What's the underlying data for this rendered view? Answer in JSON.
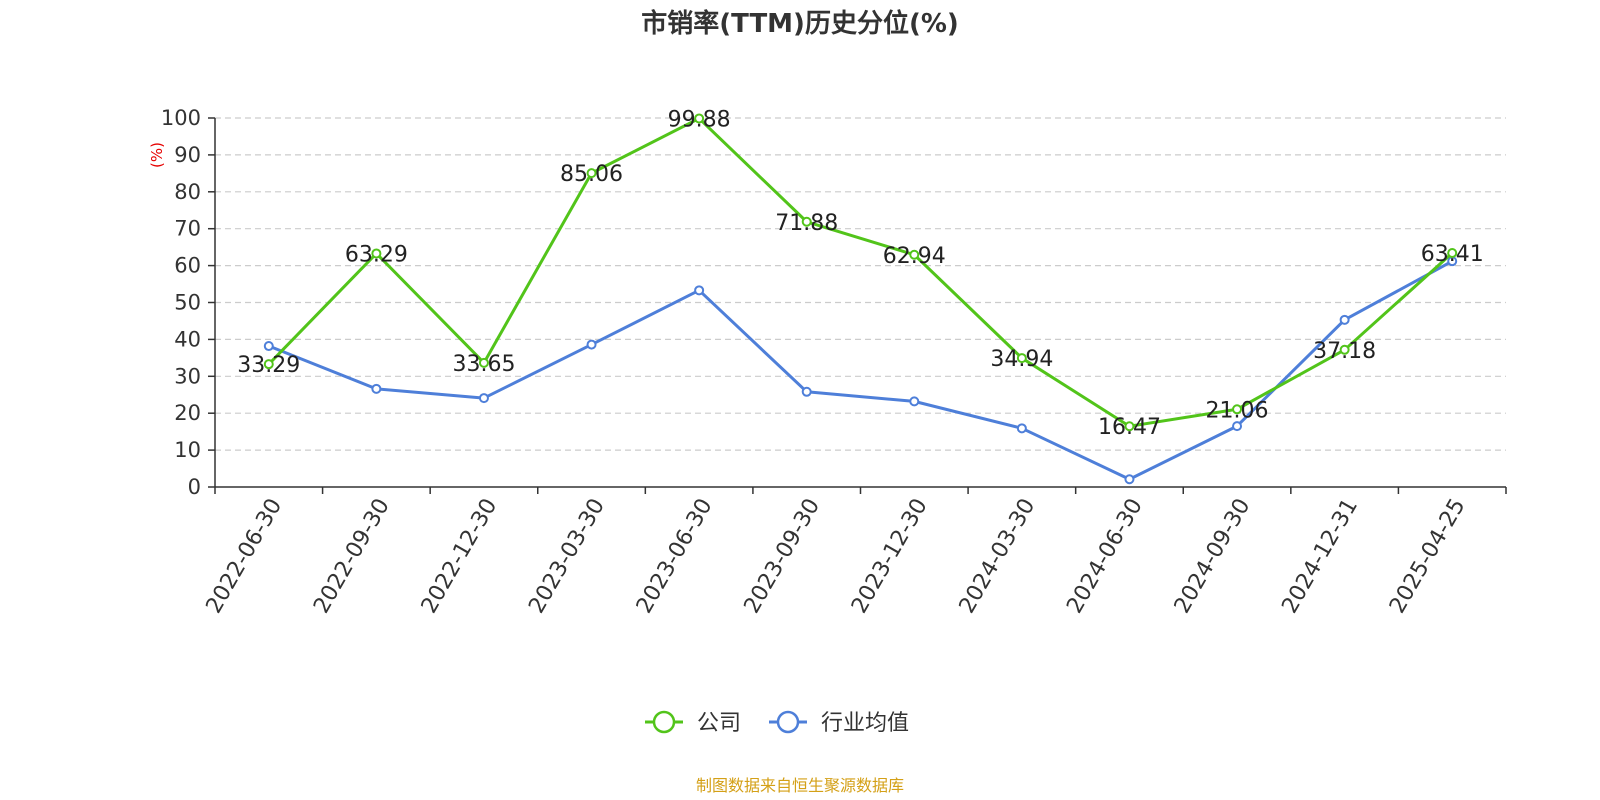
{
  "chart_data": {
    "type": "line",
    "title": "市销率(TTM)历史分位(%)",
    "ylabel": "(%)",
    "ylim": [
      0,
      100
    ],
    "yticks": [
      0,
      10,
      20,
      30,
      40,
      50,
      60,
      70,
      80,
      90,
      100
    ],
    "grid": true,
    "legend_position": "bottom",
    "categories": [
      "2022-06-30",
      "2022-09-30",
      "2022-12-30",
      "2023-03-30",
      "2023-06-30",
      "2023-09-30",
      "2023-12-30",
      "2024-03-30",
      "2024-06-30",
      "2024-09-30",
      "2024-12-31",
      "2025-04-25"
    ],
    "series": [
      {
        "name": "公司",
        "color": "#52c41a",
        "values": [
          33.29,
          63.29,
          33.65,
          85.06,
          99.88,
          71.88,
          62.94,
          34.94,
          16.47,
          21.06,
          37.18,
          63.41
        ],
        "labels": [
          "33.29",
          "63.29",
          "33.65",
          "85.06",
          "99.88",
          "71.88",
          "62.94",
          "34.94",
          "16.47",
          "21.06",
          "37.18",
          "63.41"
        ]
      },
      {
        "name": "行业均值",
        "color": "#4e7fd9",
        "values": [
          38.2,
          26.6,
          24.1,
          38.6,
          53.3,
          25.8,
          23.2,
          15.9,
          2.1,
          16.5,
          45.3,
          61.2
        ]
      }
    ],
    "source": "制图数据来自恒生聚源数据库",
    "colors": {
      "ylabel": "#e60000",
      "source": "#d4a017",
      "grid": "#cccccc",
      "axis": "#333333"
    }
  }
}
